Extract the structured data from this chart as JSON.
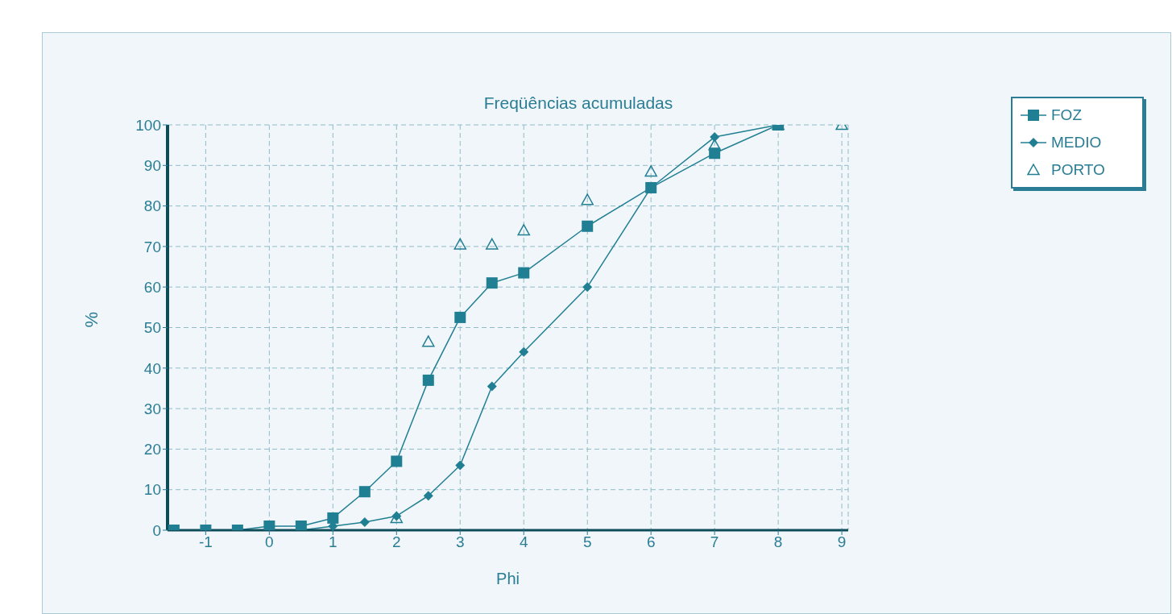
{
  "chart_data": {
    "type": "line",
    "title": "Freqüências acumuladas",
    "xlabel": "Phi",
    "ylabel": "%",
    "xlim": [
      -1.6,
      9.1
    ],
    "xticks": [
      -1,
      0,
      1,
      2,
      3,
      4,
      5,
      6,
      7,
      8,
      9
    ],
    "ylim": [
      0,
      100
    ],
    "yticks": [
      0,
      10,
      20,
      30,
      40,
      50,
      60,
      70,
      80,
      90,
      100
    ],
    "grid": true,
    "legend": "top right",
    "line_style": "solid",
    "series": [
      {
        "name": "FOZ",
        "color": "#217f94",
        "marker": "square",
        "x": [
          -1.5,
          -1,
          -0.5,
          0,
          0.5,
          1,
          1.5,
          2,
          2.5,
          3,
          3.5,
          4,
          5,
          6,
          7,
          8
        ],
        "values": [
          0,
          0,
          0,
          1,
          1,
          3,
          9.5,
          17,
          37,
          52.5,
          61,
          63.5,
          75,
          84.5,
          93,
          100
        ]
      },
      {
        "name": "MEDIO",
        "color": "#217f94",
        "marker": "diamond",
        "x": [
          -0.5,
          0,
          0.5,
          1,
          1.5,
          2,
          2.5,
          3,
          3.5,
          4,
          5,
          6,
          7,
          8
        ],
        "values": [
          0,
          0,
          0,
          1,
          2,
          3.5,
          8.5,
          16,
          35.5,
          44,
          60,
          84.5,
          97,
          100
        ]
      },
      {
        "name": "PORTO",
        "type": "scatter",
        "color": "#217f94",
        "marker": "triangle",
        "x": [
          2,
          2.5,
          3,
          3.5,
          4,
          5,
          6,
          7,
          8,
          9
        ],
        "values": [
          3,
          46.5,
          70.5,
          70.5,
          74,
          81.5,
          88.5,
          95,
          100,
          100
        ]
      }
    ]
  }
}
